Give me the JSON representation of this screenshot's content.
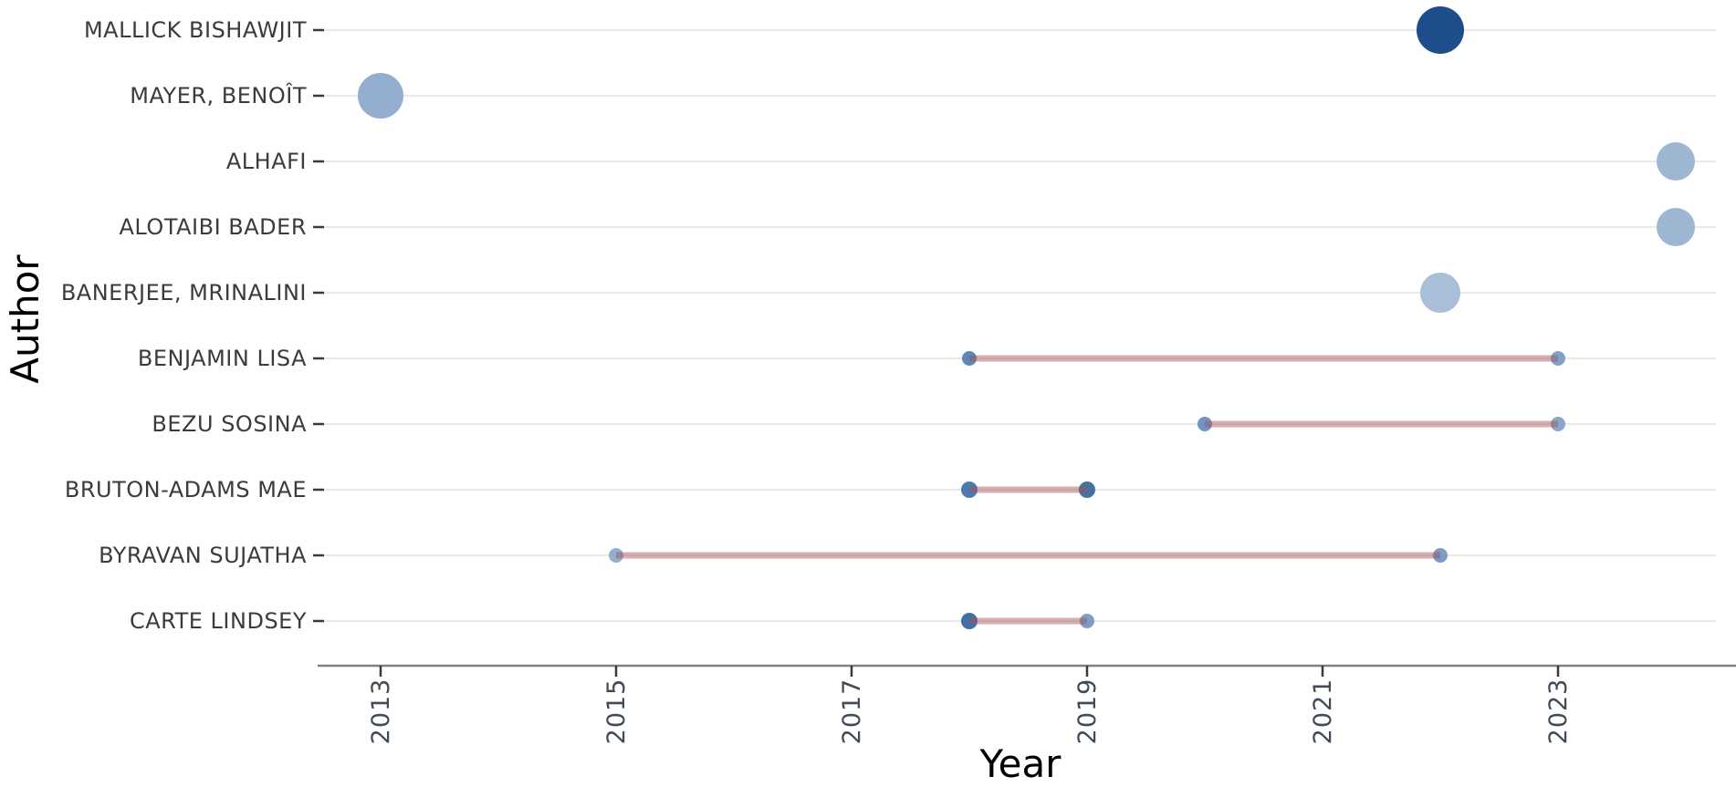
{
  "chart_data": {
    "type": "scatter",
    "subtype": "authors-production-over-time-bubble-timeline",
    "title": "",
    "xlabel": "Year",
    "ylabel": "Author",
    "x_ticks": [
      2013,
      2015,
      2017,
      2019,
      2021,
      2023
    ],
    "x_range": [
      2012.5,
      2024.4
    ],
    "grid": true,
    "legend_position": "none",
    "colors": {
      "timeline": "#a34d52",
      "grid": "#e9e9e9",
      "axis": "#808080",
      "tick": "#3a3a3a",
      "tick_label": "#414a57",
      "label": "#3b3b3b",
      "axis_title": "#4f4f4f",
      "background": "#ffffff"
    },
    "series": [
      {
        "author": "MALLICK BISHAWJIT",
        "points": [
          {
            "year": 2022,
            "r": 26,
            "color": "#1d4e8b"
          }
        ],
        "range": null
      },
      {
        "author": "MAYER, BENOÎT",
        "points": [
          {
            "year": 2013,
            "r": 25,
            "color": "#93aecf"
          }
        ],
        "range": null
      },
      {
        "author": "ALHAFI",
        "points": [
          {
            "year": 2024,
            "r": 21,
            "color": "#9db7d3"
          }
        ],
        "range": null
      },
      {
        "author": "ALOTAIBI BADER",
        "points": [
          {
            "year": 2024,
            "r": 21,
            "color": "#9db7d3"
          }
        ],
        "range": null
      },
      {
        "author": "BANERJEE, MRINALINI",
        "points": [
          {
            "year": 2022,
            "r": 22,
            "color": "#a9bfd8"
          }
        ],
        "range": null
      },
      {
        "author": "BENJAMIN LISA",
        "points": [
          {
            "year": 2018,
            "r": 8,
            "color": "#5d88b8"
          },
          {
            "year": 2023,
            "r": 8,
            "color": "#80a2c8"
          }
        ],
        "range": [
          2018,
          2023
        ]
      },
      {
        "author": "BEZU SOSINA",
        "points": [
          {
            "year": 2020,
            "r": 8,
            "color": "#7195bf"
          },
          {
            "year": 2023,
            "r": 8,
            "color": "#89a8cc"
          }
        ],
        "range": [
          2020,
          2023
        ]
      },
      {
        "author": "BRUTON-ADAMS MAE",
        "points": [
          {
            "year": 2018,
            "r": 9,
            "color": "#4b7ab0"
          },
          {
            "year": 2019,
            "r": 9,
            "color": "#45739f"
          }
        ],
        "range": [
          2018,
          2019
        ]
      },
      {
        "author": "BYRAVAN SUJATHA",
        "points": [
          {
            "year": 2015,
            "r": 8,
            "color": "#93aed0"
          },
          {
            "year": 2022,
            "r": 8,
            "color": "#7b9cc4"
          }
        ],
        "range": [
          2015,
          2022
        ]
      },
      {
        "author": "CARTE LINDSEY",
        "points": [
          {
            "year": 2018,
            "r": 9,
            "color": "#406fa7"
          },
          {
            "year": 2019,
            "r": 8,
            "color": "#7d9fc6"
          }
        ],
        "range": [
          2018,
          2019
        ]
      }
    ]
  }
}
